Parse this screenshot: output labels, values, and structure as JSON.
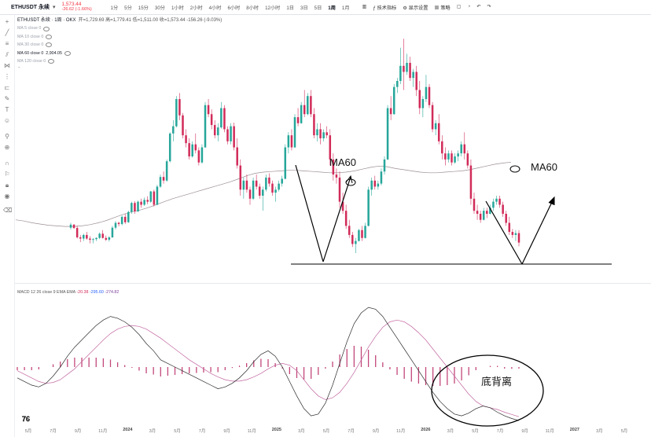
{
  "header": {
    "symbol": "ETHUSDT 永续",
    "price": "1,573.44",
    "change": "-26.62 (-1.66%)",
    "intervals": [
      "1分",
      "5分",
      "15分",
      "30分",
      "1小时",
      "2小时",
      "4小时",
      "6小时",
      "8小时",
      "12小时",
      "1日",
      "3日",
      "5日",
      "1周",
      "1月"
    ],
    "active_interval": "1周",
    "tools": [
      "技术指标",
      "显示设置",
      "策略"
    ],
    "icons": [
      "candles-icon",
      "indicators-icon",
      "settings-icon",
      "layout-icon",
      "alert-icon",
      "undo-icon",
      "redo-icon"
    ]
  },
  "legend": {
    "main": "ETHUSDT 永续 · 1周 · OKX",
    "ohlc": "开=1,729.69  高=1,779.41  低=1,511.00  收=1,573.44  -156.26 (-9.03%)",
    "ma_rows": [
      {
        "label": "MA 5 close 0"
      },
      {
        "label": "MA 10 close 0"
      },
      {
        "label": "MA 30 close 0"
      },
      {
        "label": "MA 60 close 0",
        "value": "2,904.05"
      },
      {
        "label": "MA 120 close 0"
      }
    ]
  },
  "macd_legend": {
    "label": "MACD 12 26 close 9 EMA EMA",
    "hist": "-20.38",
    "macd": "-295.60",
    "signal": "-274.82"
  },
  "annotations": {
    "ma60_a": "MA60",
    "ma60_b": "MA60",
    "divergence": "底背离"
  },
  "x_axis": [
    {
      "label": "5月",
      "bold": false
    },
    {
      "label": "7月",
      "bold": false
    },
    {
      "label": "9月",
      "bold": false
    },
    {
      "label": "11月",
      "bold": false
    },
    {
      "label": "2024",
      "bold": true
    },
    {
      "label": "3月",
      "bold": false
    },
    {
      "label": "5月",
      "bold": false
    },
    {
      "label": "7月",
      "bold": false
    },
    {
      "label": "9月",
      "bold": false
    },
    {
      "label": "11月",
      "bold": false
    },
    {
      "label": "2025",
      "bold": true
    },
    {
      "label": "3月",
      "bold": false
    },
    {
      "label": "5月",
      "bold": false
    },
    {
      "label": "7月",
      "bold": false
    },
    {
      "label": "9月",
      "bold": false
    },
    {
      "label": "11月",
      "bold": false
    },
    {
      "label": "2026",
      "bold": true
    },
    {
      "label": "3月",
      "bold": false
    },
    {
      "label": "5月",
      "bold": false
    },
    {
      "label": "7月",
      "bold": false
    },
    {
      "label": "9月",
      "bold": false
    },
    {
      "label": "11月",
      "bold": false
    },
    {
      "label": "2027",
      "bold": true
    },
    {
      "label": "3月",
      "bold": false
    },
    {
      "label": "5月",
      "bold": false
    }
  ],
  "chart_data": {
    "type": "candlestick",
    "colors": {
      "up": "#26a69a",
      "down": "#d12b59",
      "ma60": "#9c8f96",
      "macd_line": "#2b2b2b",
      "signal_line": "#c266a0",
      "hist": "#c2477a",
      "annotation": "#000000"
    },
    "candles": [
      [
        1820,
        1900,
        1790,
        1870
      ],
      [
        1870,
        1880,
        1800,
        1815
      ],
      [
        1815,
        1850,
        1640,
        1660
      ],
      [
        1660,
        1700,
        1580,
        1640
      ],
      [
        1640,
        1720,
        1600,
        1700
      ],
      [
        1700,
        1750,
        1620,
        1640
      ],
      [
        1640,
        1680,
        1560,
        1620
      ],
      [
        1620,
        1650,
        1560,
        1630
      ],
      [
        1630,
        1660,
        1600,
        1650
      ],
      [
        1650,
        1740,
        1630,
        1720
      ],
      [
        1720,
        1780,
        1640,
        1650
      ],
      [
        1650,
        1690,
        1600,
        1620
      ],
      [
        1620,
        1680,
        1590,
        1660
      ],
      [
        1660,
        1850,
        1650,
        1820
      ],
      [
        1820,
        1930,
        1790,
        1900
      ],
      [
        1900,
        1920,
        1840,
        1880
      ],
      [
        1880,
        2020,
        1860,
        2000
      ],
      [
        2000,
        2050,
        1880,
        1910
      ],
      [
        1910,
        2100,
        1900,
        2080
      ],
      [
        2080,
        2250,
        2050,
        2230
      ],
      [
        2230,
        2260,
        2050,
        2090
      ],
      [
        2090,
        2270,
        2080,
        2250
      ],
      [
        2250,
        2300,
        2150,
        2200
      ],
      [
        2200,
        2320,
        2180,
        2280
      ],
      [
        2280,
        2340,
        2210,
        2250
      ],
      [
        2250,
        2430,
        2230,
        2420
      ],
      [
        2420,
        2450,
        2170,
        2200
      ],
      [
        2200,
        2530,
        2190,
        2500
      ],
      [
        2500,
        2700,
        2480,
        2660
      ],
      [
        2660,
        2750,
        2550,
        2600
      ],
      [
        2600,
        2950,
        2580,
        2920
      ],
      [
        2920,
        3400,
        2900,
        3380
      ],
      [
        3380,
        3600,
        3250,
        3500
      ],
      [
        3500,
        4000,
        3480,
        3950
      ],
      [
        3950,
        4050,
        3600,
        3680
      ],
      [
        3680,
        3720,
        3300,
        3350
      ],
      [
        3350,
        3450,
        3150,
        3220
      ],
      [
        3220,
        3300,
        2950,
        3000
      ],
      [
        3000,
        3250,
        2980,
        3200
      ],
      [
        3200,
        3380,
        3050,
        3100
      ],
      [
        3100,
        3150,
        2850,
        2900
      ],
      [
        2900,
        3200,
        2880,
        3150
      ],
      [
        3150,
        3900,
        3140,
        3850
      ],
      [
        3850,
        3950,
        3650,
        3700
      ],
      [
        3700,
        3780,
        3450,
        3520
      ],
      [
        3520,
        3600,
        3300,
        3350
      ],
      [
        3350,
        3550,
        3250,
        3480
      ],
      [
        3480,
        3900,
        3460,
        3800
      ],
      [
        3800,
        3850,
        3400,
        3450
      ],
      [
        3450,
        3500,
        3200,
        3250
      ],
      [
        3250,
        3550,
        3200,
        3500
      ],
      [
        3500,
        3560,
        3100,
        3150
      ],
      [
        3150,
        3300,
        2800,
        2850
      ],
      [
        2850,
        2950,
        2350,
        2450
      ],
      [
        2450,
        2650,
        2300,
        2600
      ],
      [
        2600,
        2700,
        2400,
        2450
      ],
      [
        2450,
        2500,
        2200,
        2300
      ],
      [
        2300,
        2650,
        2280,
        2600
      ],
      [
        2600,
        2700,
        2450,
        2500
      ],
      [
        2500,
        2550,
        2300,
        2350
      ],
      [
        2350,
        2500,
        2100,
        2450
      ],
      [
        2450,
        2700,
        2420,
        2650
      ],
      [
        2650,
        2720,
        2500,
        2550
      ],
      [
        2550,
        2600,
        2350,
        2400
      ],
      [
        2400,
        2500,
        2250,
        2450
      ],
      [
        2450,
        2600,
        2420,
        2550
      ],
      [
        2550,
        2680,
        2500,
        2630
      ],
      [
        2630,
        3200,
        2620,
        3150
      ],
      [
        3150,
        3400,
        3050,
        3350
      ],
      [
        3350,
        3450,
        3100,
        3150
      ],
      [
        3150,
        3700,
        3140,
        3650
      ],
      [
        3650,
        3800,
        3500,
        3550
      ],
      [
        3550,
        3900,
        3540,
        3850
      ],
      [
        3850,
        4100,
        3650,
        3700
      ],
      [
        3700,
        4050,
        3680,
        4000
      ],
      [
        4000,
        4100,
        3650,
        3700
      ],
      [
        3700,
        3800,
        3300,
        3350
      ],
      [
        3350,
        3550,
        3250,
        3450
      ],
      [
        3450,
        3550,
        3200,
        3300
      ],
      [
        3300,
        3450,
        3250,
        3400
      ],
      [
        3400,
        3500,
        3300,
        3350
      ],
      [
        3350,
        3450,
        2850,
        2950
      ],
      [
        2950,
        3050,
        2600,
        2700
      ],
      [
        2700,
        2800,
        2550,
        2650
      ],
      [
        2650,
        2750,
        2150,
        2250
      ],
      [
        2250,
        2400,
        2050,
        2100
      ],
      [
        2100,
        2200,
        1800,
        1850
      ],
      [
        1850,
        1950,
        1650,
        1700
      ],
      [
        1700,
        1750,
        1500,
        1550
      ],
      [
        1550,
        1650,
        1400,
        1600
      ],
      [
        1600,
        1800,
        1590,
        1780
      ],
      [
        1780,
        1850,
        1600,
        1650
      ],
      [
        1650,
        1900,
        1640,
        1850
      ],
      [
        1850,
        2500,
        1840,
        2450
      ],
      [
        2450,
        2650,
        2350,
        2600
      ],
      [
        2600,
        2680,
        2450,
        2500
      ],
      [
        2500,
        2600,
        2450,
        2550
      ],
      [
        2550,
        2800,
        2520,
        2750
      ],
      [
        2750,
        3000,
        2700,
        2950
      ],
      [
        2950,
        3850,
        2940,
        3800
      ],
      [
        3800,
        4000,
        3600,
        3700
      ],
      [
        3700,
        4200,
        3690,
        4150
      ],
      [
        4150,
        4300,
        4050,
        4250
      ],
      [
        4250,
        4800,
        4200,
        4500
      ],
      [
        4500,
        4950,
        4100,
        4400
      ],
      [
        4400,
        4700,
        4350,
        4550
      ],
      [
        4550,
        4650,
        4250,
        4300
      ],
      [
        4300,
        4450,
        4150,
        4400
      ],
      [
        4400,
        4500,
        4000,
        4100
      ],
      [
        4100,
        4250,
        3700,
        3800
      ],
      [
        3800,
        4000,
        3650,
        3950
      ],
      [
        3950,
        4350,
        3900,
        4150
      ],
      [
        4150,
        4200,
        3800,
        3850
      ],
      [
        3850,
        3900,
        3400,
        3450
      ],
      [
        3450,
        3600,
        3350,
        3550
      ],
      [
        3550,
        3700,
        3200,
        3250
      ],
      [
        3250,
        3350,
        2950,
        3050
      ],
      [
        3050,
        3150,
        2850,
        2950
      ],
      [
        2950,
        3100,
        2900,
        3050
      ],
      [
        3050,
        3100,
        2850,
        2900
      ],
      [
        2900,
        3050,
        2880,
        3000
      ],
      [
        3000,
        3100,
        2920,
        3050
      ],
      [
        3050,
        3250,
        3000,
        3200
      ],
      [
        3200,
        3400,
        2950,
        3050
      ],
      [
        3050,
        3100,
        2800,
        2850
      ],
      [
        2850,
        2950,
        2200,
        2300
      ],
      [
        2300,
        2400,
        2050,
        2100
      ],
      [
        2100,
        2200,
        1950,
        2050
      ],
      [
        2050,
        2100,
        1900,
        1950
      ],
      [
        1950,
        2150,
        1940,
        2100
      ],
      [
        2100,
        2150,
        1980,
        2050
      ],
      [
        2050,
        2200,
        2040,
        2150
      ],
      [
        2150,
        2300,
        2100,
        2250
      ],
      [
        2250,
        2350,
        2200,
        2300
      ],
      [
        2300,
        2350,
        2150,
        2200
      ],
      [
        2200,
        2250,
        2000,
        2050
      ],
      [
        2050,
        2100,
        1850,
        1900
      ],
      [
        1900,
        2000,
        1700,
        1750
      ],
      [
        1750,
        1800,
        1650,
        1700
      ],
      [
        1700,
        1780,
        1600,
        1729.69
      ],
      [
        1729.69,
        1779.41,
        1511.0,
        1573.44
      ]
    ],
    "ma60": [
      1950,
      1930,
      1900,
      1880,
      1860,
      1850,
      1840,
      1840,
      1850,
      1870,
      1900,
      1940,
      1990,
      2040,
      2080,
      2110,
      2150,
      2200,
      2250,
      2300,
      2340,
      2380,
      2420,
      2460,
      2500,
      2540,
      2580,
      2630,
      2680,
      2720,
      2740,
      2750,
      2760,
      2770,
      2770,
      2760,
      2750,
      2740,
      2730,
      2730,
      2740,
      2760,
      2790,
      2820,
      2840,
      2830,
      2800,
      2780,
      2760,
      2740,
      2730,
      2730,
      2740,
      2750,
      2760,
      2780,
      2810,
      2840,
      2870,
      2890,
      2905
    ],
    "macd": [
      -60,
      -80,
      -100,
      -110,
      -90,
      -50,
      0,
      60,
      110,
      150,
      190,
      230,
      260,
      280,
      270,
      250,
      220,
      180,
      130,
      90,
      40,
      20,
      0,
      -20,
      -40,
      -60,
      -80,
      -100,
      -120,
      -110,
      -90,
      -60,
      -20,
      30,
      70,
      90,
      60,
      0,
      -80,
      -160,
      -230,
      -270,
      -260,
      -200,
      -100,
      20,
      140,
      240,
      300,
      330,
      320,
      280,
      220,
      160,
      100,
      40,
      -20,
      -80,
      -140,
      -190,
      -230,
      -260,
      -270,
      -255,
      -230,
      -215,
      -225,
      -250,
      -270,
      -285,
      -295.6
    ],
    "signal": [
      -20,
      -40,
      -60,
      -80,
      -90,
      -85,
      -70,
      -40,
      -10,
      30,
      70,
      110,
      150,
      185,
      210,
      225,
      230,
      225,
      210,
      185,
      160,
      130,
      100,
      70,
      40,
      15,
      -10,
      -35,
      -55,
      -70,
      -78,
      -78,
      -70,
      -55,
      -35,
      -10,
      10,
      20,
      10,
      -20,
      -70,
      -120,
      -160,
      -180,
      -170,
      -140,
      -90,
      -30,
      40,
      110,
      170,
      220,
      250,
      260,
      250,
      225,
      190,
      150,
      100,
      50,
      0,
      -50,
      -100,
      -150,
      -190,
      -215,
      -225,
      -235,
      -250,
      -262,
      -274.82
    ],
    "hist": [
      -40,
      -40,
      -40,
      -30,
      0,
      35,
      70,
      100,
      120,
      120,
      120,
      120,
      110,
      95,
      60,
      25,
      -10,
      -45,
      -80,
      -95,
      -120,
      -110,
      -100,
      -90,
      -80,
      -75,
      -70,
      -65,
      -65,
      -40,
      -12,
      18,
      50,
      85,
      105,
      100,
      50,
      -20,
      -90,
      -140,
      -160,
      -150,
      -100,
      -20,
      70,
      160,
      230,
      270,
      260,
      220,
      150,
      60,
      -30,
      -100,
      -150,
      -185,
      -210,
      -230,
      -240,
      -240,
      -230,
      -210,
      -170,
      -105,
      -40,
      0,
      15,
      15,
      -20,
      -23,
      -20.38
    ]
  }
}
